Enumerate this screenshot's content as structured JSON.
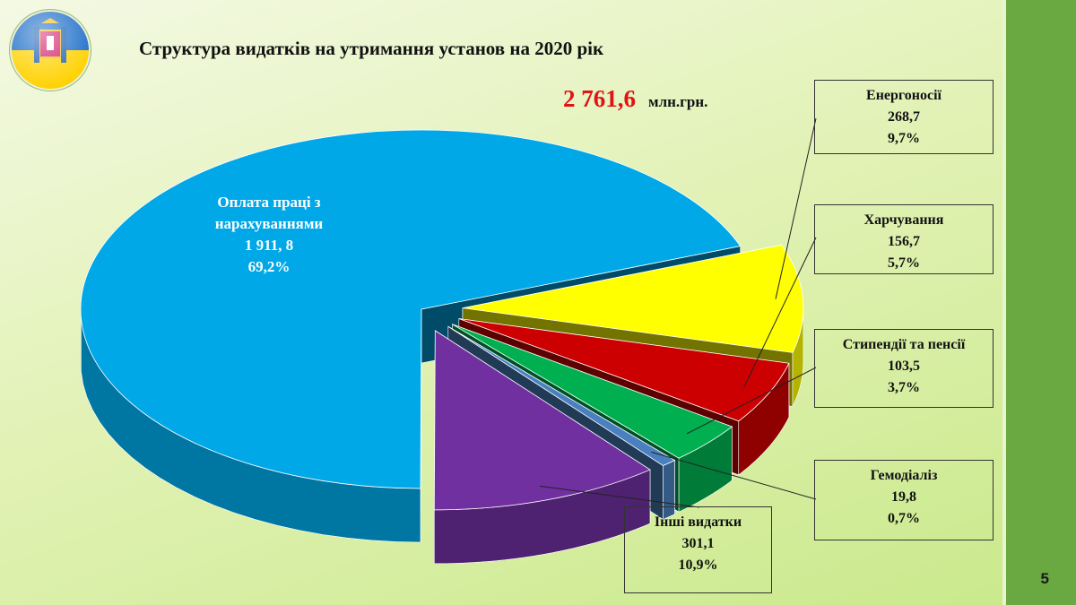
{
  "title": "Структура видатків на утримання установ на 2020 рік",
  "total": {
    "value": "2 761,6",
    "unit": "млн.грн."
  },
  "page_number": "5",
  "colors": {
    "salary": "#00a8e8",
    "energy": "#ffff00",
    "food": "#cc0000",
    "stipend": "#00b050",
    "dialysis": "#4a80c0",
    "other": "#7030a0",
    "strip": "#6aa842"
  },
  "chart_data": {
    "type": "pie",
    "title": "Структура видатків на утримання установ на 2020 рік",
    "unit": "млн.грн.",
    "total": 2761.6,
    "slices": [
      {
        "key": "energy",
        "label": "Енергоносії",
        "value": 268.7,
        "value_text": "268,7",
        "percent_text": "9,7%",
        "color": "#ffff00"
      },
      {
        "key": "food",
        "label": "Харчування",
        "value": 156.7,
        "value_text": "156,7",
        "percent_text": "5,7%",
        "color": "#cc0000"
      },
      {
        "key": "stipend",
        "label": "Стипендії та пенсії",
        "value": 103.5,
        "value_text": "103,5",
        "percent_text": "3,7%",
        "color": "#00b050"
      },
      {
        "key": "dialysis",
        "label": "Гемодіаліз",
        "value": 19.8,
        "value_text": "19,8",
        "percent_text": "0,7%",
        "color": "#4a80c0"
      },
      {
        "key": "other",
        "label": "Інші видатки",
        "value": 301.1,
        "value_text": "301,1",
        "percent_text": "10,9%",
        "color": "#7030a0"
      },
      {
        "key": "salary",
        "label_lines": [
          "Оплата праці з",
          "нарахуваннями"
        ],
        "value": 1911.8,
        "value_text": "1 911, 8",
        "percent_text": "69,2%",
        "color": "#00a8e8"
      }
    ]
  }
}
